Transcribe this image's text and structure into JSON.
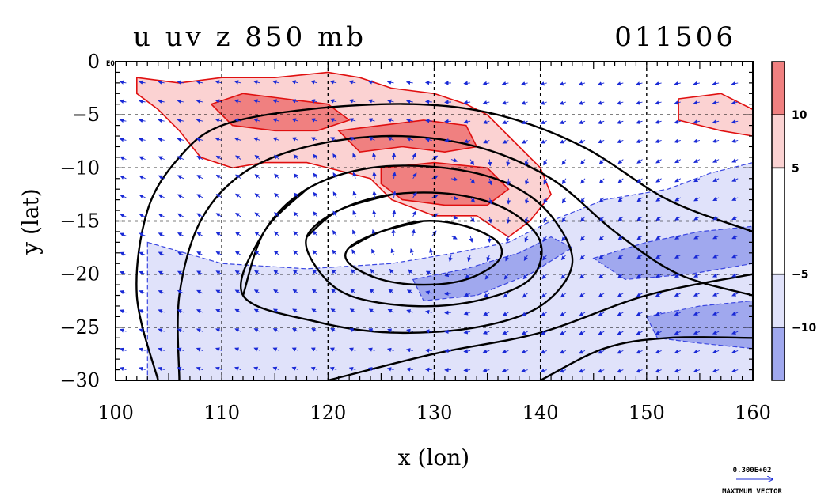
{
  "chart_data": {
    "type": "heatmap",
    "title": "u uv z 850 mb",
    "date_label": "011506",
    "xlabel": "x (lon)",
    "ylabel": "y (lat)",
    "xlim": [
      100,
      160
    ],
    "ylim": [
      -30,
      0
    ],
    "x_ticks": [
      {
        "value": 100,
        "label": "100"
      },
      {
        "value": 110,
        "label": "110"
      },
      {
        "value": 120,
        "label": "120"
      },
      {
        "value": 130,
        "label": "130"
      },
      {
        "value": 140,
        "label": "140"
      },
      {
        "value": 150,
        "label": "150"
      },
      {
        "value": 160,
        "label": "160"
      }
    ],
    "y_ticks": [
      {
        "value": 0,
        "label": "0"
      },
      {
        "value": -5,
        "label": "−5"
      },
      {
        "value": -10,
        "label": "−10"
      },
      {
        "value": -15,
        "label": "−15"
      },
      {
        "value": -20,
        "label": "−20"
      },
      {
        "value": -25,
        "label": "−25"
      },
      {
        "value": -30,
        "label": "−30"
      }
    ],
    "equator_label": "EQ",
    "grid": true,
    "shaded_variable": "u",
    "vector_variable": "uv",
    "contour_variable": "z",
    "colorbar": {
      "levels": [
        -15,
        -10,
        -5,
        5,
        10,
        15
      ],
      "colors": [
        "#a0a8ee",
        "#e0e2fa",
        "#ffffff",
        "#fbd2d2",
        "#f08080"
      ],
      "tick_labels": [
        {
          "value": 10,
          "label": "10"
        },
        {
          "value": 5,
          "label": "5"
        },
        {
          "value": -5,
          "label": "−5"
        },
        {
          "value": -10,
          "label": "−10"
        }
      ]
    },
    "positive_regions": [
      {
        "level": 5,
        "polygon": [
          [
            102,
            -1.5
          ],
          [
            106,
            -2
          ],
          [
            110,
            -1.5
          ],
          [
            115,
            -1.5
          ],
          [
            120,
            -1
          ],
          [
            123,
            -1.5
          ],
          [
            126,
            -2.5
          ],
          [
            130,
            -3
          ],
          [
            133,
            -4
          ],
          [
            135,
            -5
          ],
          [
            137,
            -7
          ],
          [
            140,
            -10
          ],
          [
            141,
            -12.5
          ],
          [
            139,
            -15
          ],
          [
            137,
            -16.5
          ],
          [
            134,
            -14.5
          ],
          [
            130,
            -14.5
          ],
          [
            126,
            -13
          ],
          [
            124,
            -11
          ],
          [
            122,
            -10.5
          ],
          [
            118,
            -9.5
          ],
          [
            114,
            -9.5
          ],
          [
            111,
            -10
          ],
          [
            108,
            -9
          ],
          [
            106,
            -6.5
          ],
          [
            104,
            -4.5
          ],
          [
            102,
            -3
          ]
        ]
      },
      {
        "level": 5,
        "polygon": [
          [
            153,
            -3.5
          ],
          [
            157,
            -3
          ],
          [
            160,
            -4.5
          ],
          [
            160,
            -7
          ],
          [
            157,
            -6.5
          ],
          [
            153,
            -5.5
          ]
        ]
      },
      {
        "level": 10,
        "polygon": [
          [
            109,
            -4
          ],
          [
            112,
            -3
          ],
          [
            116,
            -3.5
          ],
          [
            120,
            -4
          ],
          [
            122,
            -5.5
          ],
          [
            119,
            -6.5
          ],
          [
            115,
            -6.5
          ],
          [
            111,
            -6
          ]
        ]
      },
      {
        "level": 10,
        "polygon": [
          [
            121,
            -6.5
          ],
          [
            125,
            -6
          ],
          [
            129,
            -5.5
          ],
          [
            133,
            -6
          ],
          [
            134,
            -8
          ],
          [
            131,
            -8.5
          ],
          [
            127,
            -8
          ],
          [
            123,
            -8.5
          ]
        ]
      },
      {
        "level": 10,
        "polygon": [
          [
            125,
            -10
          ],
          [
            130,
            -9.5
          ],
          [
            135,
            -10
          ],
          [
            137,
            -12
          ],
          [
            135,
            -13.5
          ],
          [
            131,
            -13.5
          ],
          [
            127,
            -13
          ],
          [
            125,
            -11.5
          ]
        ]
      }
    ],
    "negative_regions": [
      {
        "level": -5,
        "polygon": [
          [
            103,
            -17
          ],
          [
            110,
            -19
          ],
          [
            118,
            -19.5
          ],
          [
            126,
            -19
          ],
          [
            132,
            -18
          ],
          [
            137,
            -17
          ],
          [
            141,
            -15
          ],
          [
            146,
            -13
          ],
          [
            152,
            -12
          ],
          [
            156,
            -10.5
          ],
          [
            160,
            -9.5
          ],
          [
            160,
            -30
          ],
          [
            103,
            -30
          ]
        ]
      },
      {
        "level": -10,
        "polygon": [
          [
            128,
            -20.5
          ],
          [
            133,
            -19.5
          ],
          [
            138,
            -18
          ],
          [
            141,
            -16.5
          ],
          [
            143,
            -17.5
          ],
          [
            139,
            -20
          ],
          [
            134,
            -22
          ],
          [
            129,
            -22.5
          ]
        ]
      },
      {
        "level": -10,
        "polygon": [
          [
            145,
            -18.5
          ],
          [
            150,
            -17
          ],
          [
            155,
            -16
          ],
          [
            160,
            -15.5
          ],
          [
            160,
            -19
          ],
          [
            154,
            -20
          ],
          [
            148,
            -20.5
          ]
        ]
      },
      {
        "level": -10,
        "polygon": [
          [
            150,
            -24
          ],
          [
            155,
            -23
          ],
          [
            160,
            -22.5
          ],
          [
            160,
            -27
          ],
          [
            155,
            -26.5
          ],
          [
            151,
            -26
          ]
        ]
      }
    ],
    "geopotential_contours": [
      [
        [
          122,
          -17.5
        ],
        [
          125,
          -16
        ],
        [
          129,
          -15
        ],
        [
          133,
          -15.5
        ],
        [
          136,
          -17
        ],
        [
          136,
          -18.8
        ],
        [
          133,
          -20.5
        ],
        [
          129,
          -21
        ],
        [
          125,
          -20.5
        ],
        [
          122,
          -19
        ]
      ],
      [
        [
          118,
          -16.5
        ],
        [
          121,
          -14
        ],
        [
          126,
          -12.5
        ],
        [
          132,
          -12.5
        ],
        [
          137,
          -14
        ],
        [
          140,
          -17
        ],
        [
          139,
          -20.5
        ],
        [
          134,
          -22.5
        ],
        [
          128,
          -23
        ],
        [
          122,
          -22
        ],
        [
          119,
          -19.5
        ]
      ],
      [
        [
          112,
          -22
        ],
        [
          114,
          -16
        ],
        [
          118,
          -12
        ],
        [
          124,
          -10
        ],
        [
          131,
          -10
        ],
        [
          137,
          -11.5
        ],
        [
          141,
          -14.5
        ],
        [
          143,
          -19
        ],
        [
          140,
          -23
        ],
        [
          134,
          -25
        ],
        [
          126,
          -25.5
        ],
        [
          119,
          -24.5
        ]
      ],
      [
        [
          106,
          -30
        ],
        [
          106,
          -22
        ],
        [
          108,
          -15
        ],
        [
          112,
          -10.5
        ],
        [
          118,
          -8
        ],
        [
          126,
          -7
        ],
        [
          134,
          -8
        ],
        [
          141,
          -11
        ],
        [
          147,
          -16
        ],
        [
          153,
          -20
        ],
        [
          160,
          -22
        ]
      ],
      [
        [
          104,
          -30
        ],
        [
          102,
          -22
        ],
        [
          103,
          -14
        ],
        [
          106,
          -9
        ],
        [
          110,
          -6
        ],
        [
          118,
          -4.5
        ],
        [
          128,
          -4
        ],
        [
          136,
          -5
        ],
        [
          144,
          -8
        ],
        [
          152,
          -13
        ],
        [
          160,
          -16
        ]
      ],
      [
        [
          140,
          -30
        ],
        [
          146,
          -27
        ],
        [
          152,
          -26
        ],
        [
          160,
          -26
        ]
      ],
      [
        [
          120,
          -30
        ],
        [
          130,
          -27.5
        ],
        [
          140,
          -25.5
        ],
        [
          150,
          -22
        ],
        [
          160,
          -20
        ]
      ]
    ],
    "vector_key": {
      "label": "0.300E+02",
      "caption": "MAXIMUM VECTOR"
    }
  }
}
